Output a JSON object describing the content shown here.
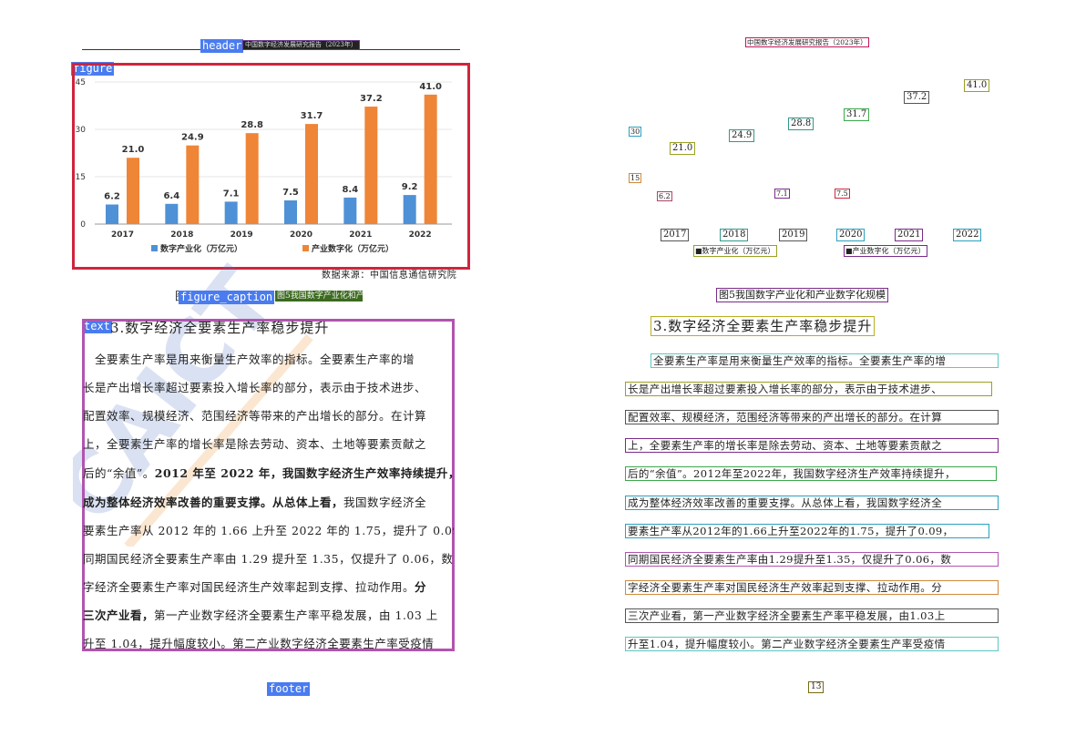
{
  "left": {
    "header_tag": "header",
    "header_text": "中国数字经济发展研究报告（2023年）",
    "figure_tag": "figure",
    "chart_data": {
      "type": "bar",
      "categories": [
        "2017",
        "2018",
        "2019",
        "2020",
        "2021",
        "2022"
      ],
      "series": [
        {
          "name": "数字产业化（万亿元）",
          "values": [
            6.2,
            6.4,
            7.1,
            7.5,
            8.4,
            9.2
          ],
          "color": "#4e91d6"
        },
        {
          "name": "产业数字化（万亿元）",
          "values": [
            21.0,
            24.9,
            28.8,
            31.7,
            37.2,
            41.0
          ],
          "color": "#ef8537"
        }
      ],
      "yticks": [
        "0",
        "15",
        "30",
        "45"
      ],
      "ylim": [
        0,
        45
      ],
      "legend_position": "bottom"
    },
    "data_source": "数据来源：中国信息通信研究院",
    "caption_tag": "figure_caption",
    "caption_text": "图5我国数字产业化和产业数字化规模",
    "text_tag": "text",
    "section_title": "3.数字经济全要素生产率稳步提升",
    "para_lines": [
      [
        {
          "t": "　全要素生产率是用来衡量生产效率的指标。全要素生产率的增",
          "b": false
        }
      ],
      [
        {
          "t": "长是产出增长率超过要素投入增长率的部分，表示由于技术进步、",
          "b": false
        }
      ],
      [
        {
          "t": "配置效率、规模经济、范围经济等带来的产出增长的部分。在计算",
          "b": false
        }
      ],
      [
        {
          "t": "上，全要素生产率的增长率是除去劳动、资本、土地等要素贡献之",
          "b": false
        }
      ],
      [
        {
          "t": "后的“余值”。",
          "b": false
        },
        {
          "t": "2012 年至 2022 年，我国数字经济生产效率持续提升，",
          "b": true
        }
      ],
      [
        {
          "t": "成为整体经济效率改善的重要支撑。从总体上看，",
          "b": true
        },
        {
          "t": "我国数字经济全",
          "b": false
        }
      ],
      [
        {
          "t": "要素生产率从 2012 年的 1.66 上升至 2022 年的 1.75，提升了 0.09，",
          "b": false
        }
      ],
      [
        {
          "t": "同期国民经济全要素生产率由 1.29 提升至 1.35，仅提升了 0.06，数",
          "b": false
        }
      ],
      [
        {
          "t": "字经济全要素生产率对国民经济生产效率起到支撑、拉动作用。",
          "b": false
        },
        {
          "t": "分",
          "b": true
        }
      ],
      [
        {
          "t": "三次产业看，",
          "b": true
        },
        {
          "t": "第一产业数字经济全要素生产率平稳发展，由 1.03 上",
          "b": false
        }
      ],
      [
        {
          "t": "升至 1.04，提升幅度较小。第二产业数字经济全要素生产率受疫情",
          "b": false
        }
      ]
    ],
    "footer_tag": "footer"
  },
  "right": {
    "header_text": "中国数字经济发展研究报告（2023年）",
    "value_labels": [
      "41.0",
      "37.2",
      "31.7",
      "28.8",
      "24.9",
      "21.0",
      "6.2",
      "7.1",
      "7.5"
    ],
    "axis_labels": [
      "30",
      "15"
    ],
    "years": [
      "2017",
      "2018",
      "2019",
      "2020",
      "2021",
      "2022"
    ],
    "legend": [
      "■数字产业化（万亿元）",
      "■产业数字化（万亿元）"
    ],
    "caption_text": "图5我国数字产业化和产业数字化规模",
    "section_title": "3.数字经济全要素生产率稳步提升",
    "lines": [
      "全要素生产率是用来衡量生产效率的指标。全要素生产率的增",
      "长是产出增长率超过要素投入增长率的部分，表示由于技术进步、",
      "配置效率、规模经济，范围经济等带来的产出增长的部分。在计算",
      "上，全要素生产率的增长率是除去劳动、资本、土地等要素贡献之",
      "后的“余值”。2012年至2022年，我国数字经济生产效率持续提升，",
      "成为整体经济效率改善的重要支撑。从总体上看，我国数字经济全",
      "要素生产率从2012年的1.66上升至2022年的1.75，提升了0.09，",
      "同期国民经济全要素生产率由1.29提升至1.35，仅提升了0.06，数",
      "字经济全要素生产率对国民经济生产效率起到支撑、拉动作用。分",
      "三次产业看，第一产业数字经济全要素生产率平稳发展，由1.03上",
      "升至1.04，提升幅度较小。第二产业数字经济全要素生产率受疫情"
    ],
    "page_number": "13"
  }
}
